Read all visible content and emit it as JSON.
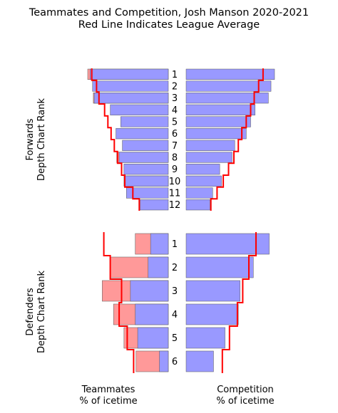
{
  "chart_data": {
    "type": "bar",
    "title": "Teammates and Competition, Josh Manson 2020-2021",
    "subtitle": "Red Line Indicates League Average",
    "xlabel_left": "Teammates\n% of icetime",
    "xlabel_right": "Competition\n% of icetime",
    "colors": {
      "bar_blue": "#9999ff",
      "bar_pink": "#ff9999",
      "league_line": "#ff0000",
      "bar_edge": "#555555"
    },
    "forwards": {
      "group_label": "Forwards\nDepth Chart Rank",
      "ranks": [
        "1",
        "2",
        "3",
        "4",
        "5",
        "6",
        "7",
        "8",
        "9",
        "10",
        "11",
        "12"
      ],
      "teammates_blue": [
        0.97,
        0.94,
        0.92,
        0.72,
        0.59,
        0.65,
        0.57,
        0.61,
        0.55,
        0.54,
        0.52,
        0.35
      ],
      "teammates_pink": [
        1.0,
        0.0,
        0.93,
        0.0,
        0.0,
        0.0,
        0.0,
        0.64,
        0.0,
        0.55,
        0.0,
        0.0
      ],
      "teammates_league": [
        0.95,
        0.89,
        0.86,
        0.79,
        0.75,
        0.71,
        0.67,
        0.63,
        0.58,
        0.54,
        0.44,
        0.36
      ],
      "competition_blue": [
        1.0,
        0.96,
        0.93,
        0.78,
        0.73,
        0.68,
        0.55,
        0.52,
        0.38,
        0.4,
        0.3,
        0.27
      ],
      "competition_league": [
        0.87,
        0.82,
        0.77,
        0.73,
        0.68,
        0.63,
        0.59,
        0.54,
        0.48,
        0.42,
        0.35,
        0.28
      ]
    },
    "defenders": {
      "group_label": "Defenders\nDepth Chart Rank",
      "ranks": [
        "1",
        "2",
        "3",
        "4",
        "5",
        "6"
      ],
      "teammates_blue": [
        0.22,
        0.25,
        0.47,
        0.41,
        0.38,
        0.11
      ],
      "teammates_pink": [
        0.41,
        0.72,
        0.82,
        0.68,
        0.55,
        0.4
      ],
      "teammates_league": [
        0.8,
        0.72,
        0.58,
        0.61,
        0.51,
        0.43
      ],
      "competition_blue": [
        0.94,
        0.76,
        0.61,
        0.59,
        0.44,
        0.31
      ],
      "competition_league": [
        0.79,
        0.71,
        0.64,
        0.58,
        0.49,
        0.41
      ]
    }
  }
}
